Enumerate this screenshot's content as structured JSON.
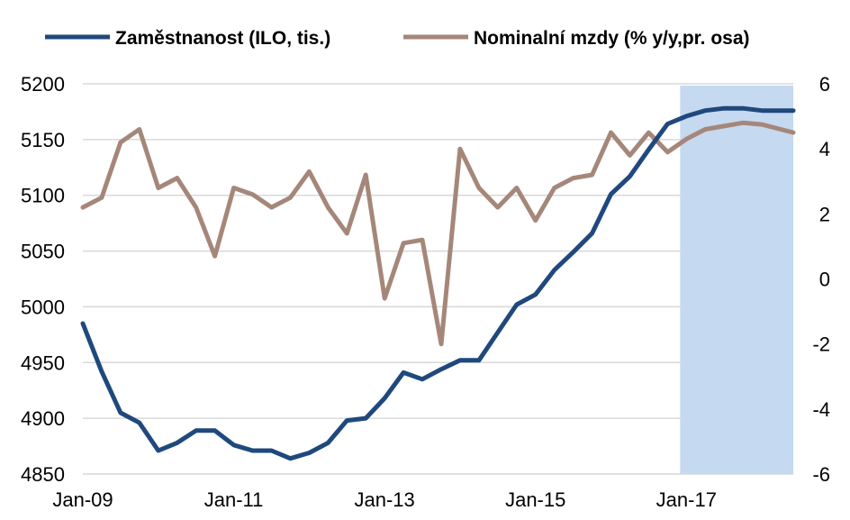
{
  "chart_data": {
    "type": "line",
    "title": "",
    "xlabel": "",
    "ylabel": "",
    "x_tick_labels": [
      "Jan-09",
      "Jan-11",
      "Jan-13",
      "Jan-15",
      "Jan-17"
    ],
    "x_range": [
      "2009-01",
      "2018-06"
    ],
    "left_axis": {
      "range": [
        4850,
        5200
      ],
      "ticks": [
        "4850",
        "4900",
        "4950",
        "5000",
        "5050",
        "5100",
        "5150",
        "5200"
      ]
    },
    "right_axis": {
      "range": [
        -6,
        6
      ],
      "ticks": [
        "-6",
        "-4",
        "-2",
        "0",
        "2",
        "4",
        "6"
      ]
    },
    "shaded_region": {
      "from": "2016-12",
      "to": "2018-06",
      "color": "#c5d9f1"
    },
    "grid": true,
    "legend_position": "top",
    "series": [
      {
        "name": "Zaměstnanost (ILO, tis.)",
        "axis": "left",
        "color": "#1f497d",
        "x": [
          "2009-01",
          "2009-04",
          "2009-07",
          "2009-10",
          "2010-01",
          "2010-04",
          "2010-07",
          "2010-10",
          "2011-01",
          "2011-04",
          "2011-07",
          "2011-10",
          "2012-01",
          "2012-04",
          "2012-07",
          "2012-10",
          "2013-01",
          "2013-04",
          "2013-07",
          "2013-10",
          "2014-01",
          "2014-04",
          "2014-07",
          "2014-10",
          "2015-01",
          "2015-04",
          "2015-07",
          "2015-10",
          "2016-01",
          "2016-04",
          "2016-07",
          "2016-10",
          "2017-01",
          "2017-04",
          "2017-07",
          "2017-10",
          "2018-01",
          "2018-04",
          "2018-06"
        ],
        "values": [
          4985,
          4942,
          4905,
          4896,
          4871,
          4878,
          4889,
          4889,
          4876,
          4871,
          4871,
          4864,
          4869,
          4878,
          4898,
          4900,
          4918,
          4941,
          4935,
          4944,
          4952,
          4952,
          4977,
          5002,
          5011,
          5033,
          5049,
          5066,
          5101,
          5117,
          5141,
          5164,
          5171,
          5176,
          5178,
          5178,
          5176,
          5176,
          5176
        ]
      },
      {
        "name": "Nominalní mzdy (% y/y,pr. osa)",
        "axis": "right",
        "color": "#a5877a",
        "x": [
          "2009-01",
          "2009-04",
          "2009-07",
          "2009-10",
          "2010-01",
          "2010-04",
          "2010-07",
          "2010-10",
          "2011-01",
          "2011-04",
          "2011-07",
          "2011-10",
          "2012-01",
          "2012-04",
          "2012-07",
          "2012-10",
          "2013-01",
          "2013-04",
          "2013-07",
          "2013-10",
          "2014-01",
          "2014-04",
          "2014-07",
          "2014-10",
          "2015-01",
          "2015-04",
          "2015-07",
          "2015-10",
          "2016-01",
          "2016-04",
          "2016-07",
          "2016-10",
          "2017-01",
          "2017-04",
          "2017-07",
          "2017-10",
          "2018-01",
          "2018-04",
          "2018-06"
        ],
        "values": [
          2.2,
          2.5,
          4.2,
          4.6,
          2.8,
          3.1,
          2.2,
          0.7,
          2.8,
          2.6,
          2.2,
          2.5,
          3.3,
          2.2,
          1.4,
          3.2,
          -0.6,
          1.1,
          1.2,
          -2.0,
          4.0,
          2.8,
          2.2,
          2.8,
          1.8,
          2.8,
          3.1,
          3.2,
          4.5,
          3.8,
          4.5,
          3.9,
          4.3,
          4.6,
          4.7,
          4.8,
          4.75,
          4.6,
          4.5
        ]
      }
    ]
  }
}
